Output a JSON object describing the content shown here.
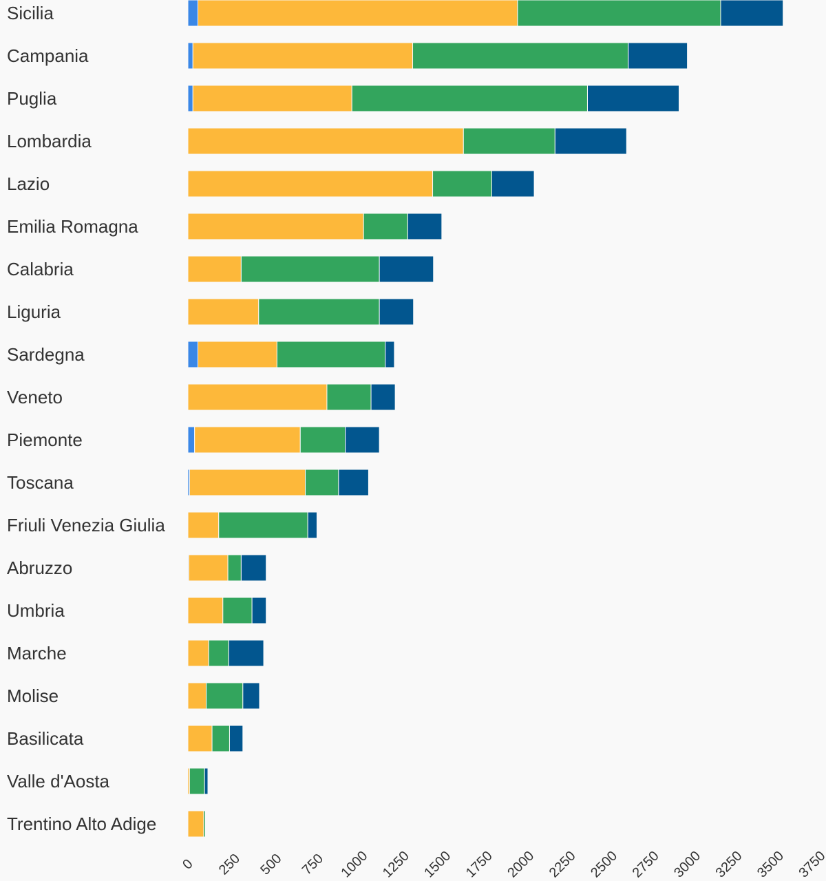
{
  "chart_data": {
    "type": "bar",
    "orientation": "horizontal",
    "stacked": true,
    "categories": [
      "Sicilia",
      "Campania",
      "Puglia",
      "Lombardia",
      "Lazio",
      "Emilia Romagna",
      "Calabria",
      "Liguria",
      "Sardegna",
      "Veneto",
      "Piemonte",
      "Toscana",
      "Friuli Venezia Giulia",
      "Abruzzo",
      "Umbria",
      "Marche",
      "Molise",
      "Basilicata",
      "Valle d'Aosta",
      "Trentino Alto Adige"
    ],
    "series": [
      {
        "color": "#3a87e6",
        "values": [
          60,
          30,
          30,
          0,
          0,
          0,
          0,
          0,
          60,
          0,
          40,
          10,
          0,
          5,
          0,
          0,
          0,
          0,
          0,
          0
        ]
      },
      {
        "color": "#fdb83a",
        "values": [
          1920,
          1320,
          955,
          1655,
          1470,
          1055,
          320,
          425,
          475,
          835,
          635,
          695,
          185,
          235,
          210,
          125,
          110,
          145,
          10,
          95
        ]
      },
      {
        "color": "#33a55d",
        "values": [
          1220,
          1295,
          1415,
          550,
          355,
          265,
          830,
          725,
          650,
          265,
          270,
          200,
          535,
          80,
          175,
          120,
          220,
          105,
          90,
          10
        ]
      },
      {
        "color": "#02568f",
        "values": [
          375,
          355,
          550,
          430,
          255,
          205,
          325,
          205,
          55,
          145,
          205,
          180,
          55,
          150,
          85,
          210,
          100,
          80,
          20,
          0
        ]
      }
    ],
    "xlim": [
      0,
      3750
    ],
    "xticks": [
      "0",
      "250",
      "500",
      "750",
      "1000",
      "1250",
      "1500",
      "1750",
      "2000",
      "2250",
      "2500",
      "2750",
      "3000",
      "3250",
      "3500",
      "3750"
    ],
    "grid": false,
    "legend": "none"
  }
}
